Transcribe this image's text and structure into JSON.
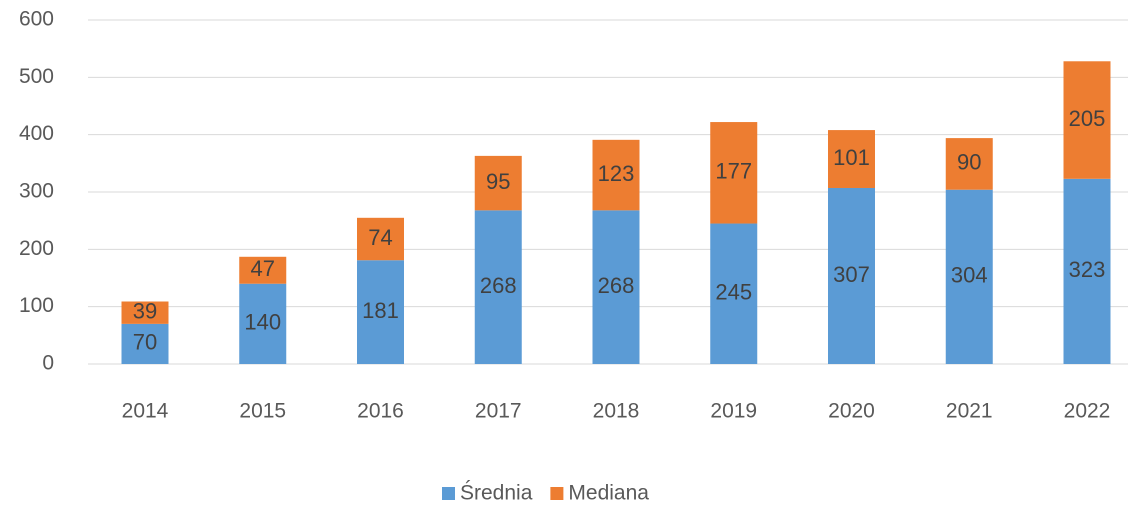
{
  "chart_data": {
    "type": "stacked_bar",
    "categories": [
      "2014",
      "2015",
      "2016",
      "2017",
      "2018",
      "2019",
      "2020",
      "2021",
      "2022"
    ],
    "series": [
      {
        "name": "Średnia",
        "color": "#5b9bd5",
        "values": [
          70,
          140,
          181,
          268,
          268,
          245,
          307,
          304,
          323
        ]
      },
      {
        "name": "Mediana",
        "color": "#ed7d31",
        "values": [
          39,
          47,
          74,
          95,
          123,
          177,
          101,
          90,
          205
        ]
      }
    ],
    "ylim": [
      0,
      600
    ],
    "yticks": [
      0,
      100,
      200,
      300,
      400,
      500,
      600
    ],
    "grid": true,
    "legend": "bottom"
  }
}
